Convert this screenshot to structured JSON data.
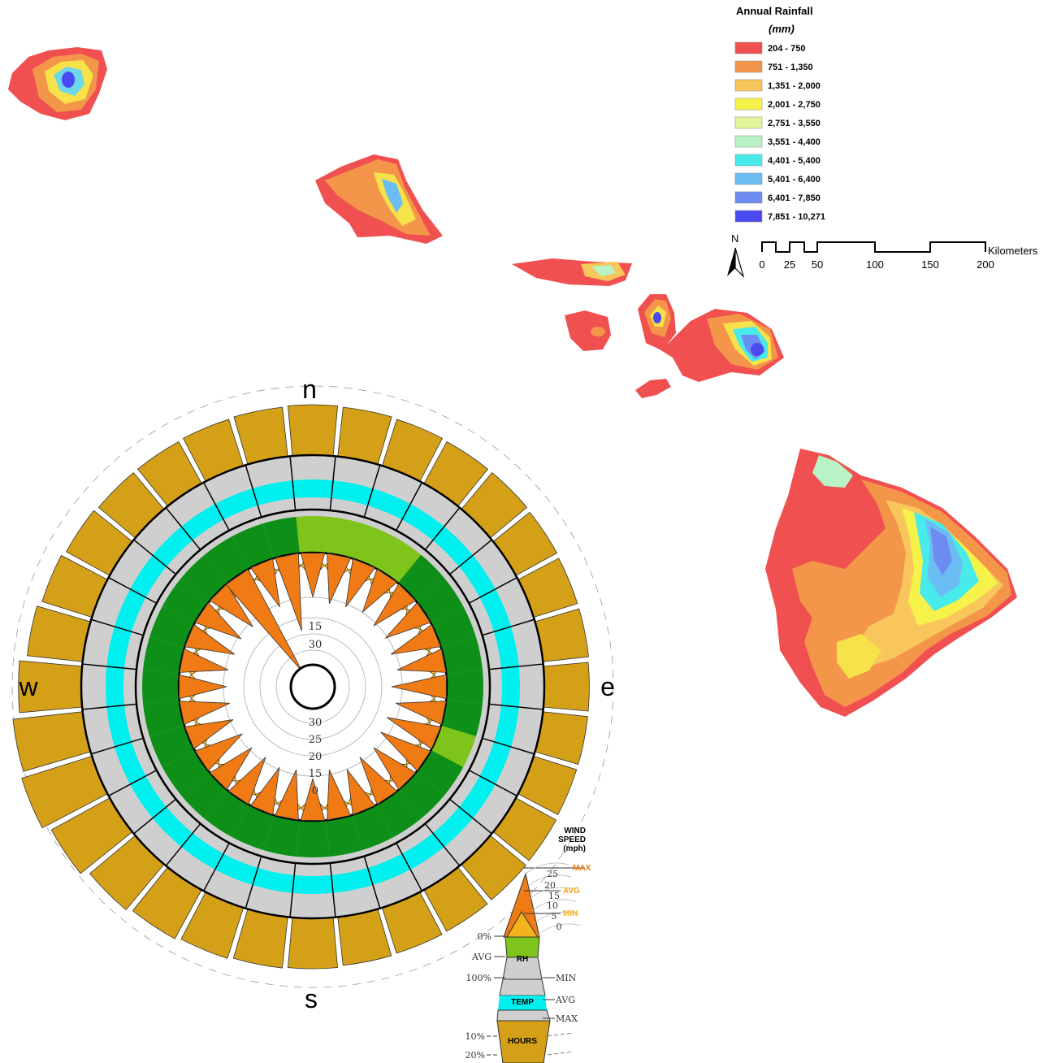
{
  "legend": {
    "title": "Annual Rainfall",
    "unit": "(mm)",
    "classes": [
      {
        "label": "204 - 750",
        "color": "#f05050"
      },
      {
        "label": "751 - 1,350",
        "color": "#f4964a"
      },
      {
        "label": "1,351 - 2,000",
        "color": "#f8c65a"
      },
      {
        "label": "2,001 - 2,750",
        "color": "#f7f24a"
      },
      {
        "label": "2,751 - 3,550",
        "color": "#e2f59a"
      },
      {
        "label": "3,551 - 4,400",
        "color": "#b9f2c4"
      },
      {
        "label": "4,401 - 5,400",
        "color": "#48eaea"
      },
      {
        "label": "5,401 - 6,400",
        "color": "#6cbcf4"
      },
      {
        "label": "6,401 - 7,850",
        "color": "#6c8cf2"
      },
      {
        "label": "7,851 - 10,271",
        "color": "#4a4af0"
      }
    ]
  },
  "scale_bar": {
    "north": "N",
    "unit": "Kilometers",
    "ticks": [
      "0",
      "25",
      "50",
      "100",
      "150",
      "200"
    ]
  },
  "wind_rose": {
    "directions": {
      "n": "n",
      "e": "e",
      "s": "s",
      "w": "w"
    },
    "inner_labels_top": [
      "15",
      "30"
    ],
    "inner_labels_bottom": [
      "30",
      "25",
      "20",
      "15",
      "0"
    ],
    "colors": {
      "hours": "#d4a017",
      "temp": "#00f0f0",
      "temp_band": "#cfcfcf",
      "rh_dark": "#0e8f17",
      "rh_light": "#7fc41a",
      "wind_max": "#f07a14",
      "wind_min": "#f6b21c"
    }
  },
  "key": {
    "title_lines": [
      "WIND",
      "SPEED",
      "(mph)"
    ],
    "speed_ticks": [
      "25",
      "20",
      "15",
      "10",
      "5",
      "0"
    ],
    "max": "MAX",
    "avg": "AVG",
    "min": "MIN",
    "rh": "RH",
    "temp": "TEMP",
    "hours": "HOURS",
    "rh_left": [
      "0%",
      "AVG",
      "100%"
    ],
    "temp_right": [
      "MIN",
      "AVG",
      "MAX"
    ],
    "hours_left": [
      "10%",
      "20%"
    ]
  }
}
